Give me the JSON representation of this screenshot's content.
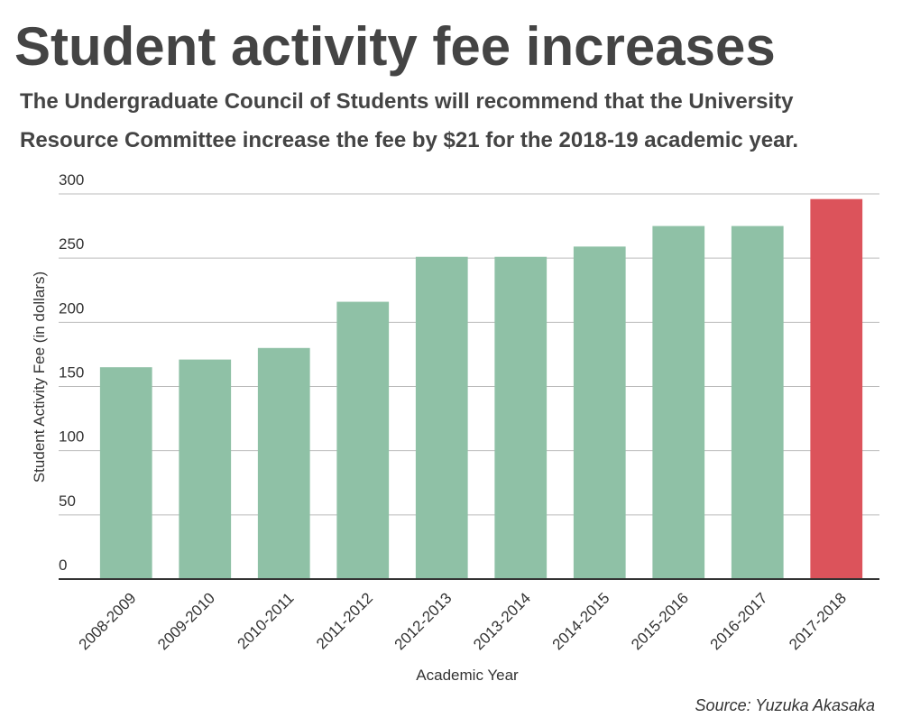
{
  "chart_data": {
    "type": "bar",
    "title": "Student activity fee increases",
    "subtitle": [
      "The Undergraduate Council of Students will recommend that the University",
      "Resource Committee increase the fee by $21 for the 2018-19 academic year."
    ],
    "x_label": "Academic Year",
    "y_label": "Student Activity Fee (in dollars)",
    "source": "Source: Yuzuka Akasaka",
    "categories": [
      "2008-2009",
      "2009-2010",
      "2010-2011",
      "2011-2012",
      "2012-2013",
      "2013-2014",
      "2014-2015",
      "2015-2016",
      "2016-2017",
      "2017-2018"
    ],
    "values": [
      165,
      171,
      180,
      216,
      251,
      251,
      259,
      275,
      275,
      296
    ],
    "colors": [
      "#8fc1a6",
      "#8fc1a6",
      "#8fc1a6",
      "#8fc1a6",
      "#8fc1a6",
      "#8fc1a6",
      "#8fc1a6",
      "#8fc1a6",
      "#8fc1a6",
      "#dc535b"
    ],
    "ylim": [
      0,
      300
    ],
    "yticks": [
      0,
      50,
      100,
      150,
      200,
      250,
      300
    ],
    "grid": true
  }
}
